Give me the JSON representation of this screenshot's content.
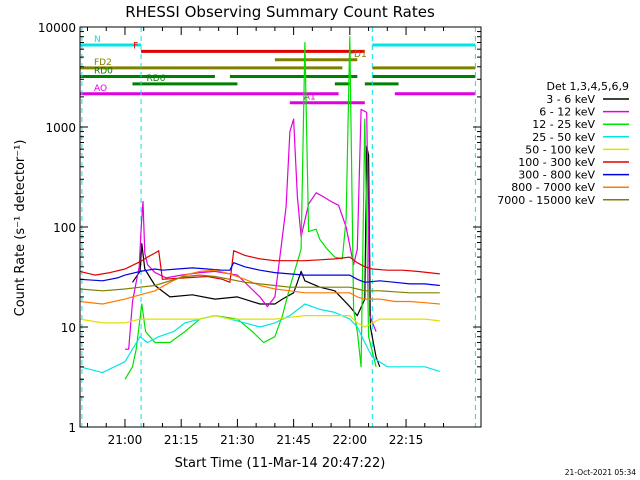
{
  "chart_data": {
    "type": "line",
    "title": "RHESSI Observing Summary Count Rates",
    "xlabel": "Start Time (11-Mar-14 20:47:22)",
    "ylabel": "Count Rate (s⁻¹ detector⁻¹)",
    "yscale": "log",
    "ylim": [
      1,
      10000
    ],
    "xlim_minutes": [
      -12,
      95
    ],
    "x_ticks": [
      {
        "m": 0,
        "label": "21:00"
      },
      {
        "m": 15,
        "label": "21:15"
      },
      {
        "m": 30,
        "label": "21:30"
      },
      {
        "m": 45,
        "label": "21:45"
      },
      {
        "m": 60,
        "label": "22:00"
      },
      {
        "m": 75,
        "label": "22:15"
      }
    ],
    "y_ticks": [
      {
        "v": 1,
        "label": "1"
      },
      {
        "v": 10,
        "label": "10"
      },
      {
        "v": 100,
        "label": "100"
      },
      {
        "v": 1000,
        "label": "1000"
      },
      {
        "v": 10000,
        "label": "10000"
      }
    ],
    "legend_title": "Det 1,3,4,5,6,9",
    "legend_position": "right",
    "series": [
      {
        "name": "3 - 6 keV",
        "color": "#000000",
        "points": [
          [
            -12,
            null
          ],
          [
            0,
            null
          ],
          [
            2,
            28
          ],
          [
            4,
            36
          ],
          [
            4.5,
            68
          ],
          [
            5.3,
            38
          ],
          [
            8,
            26
          ],
          [
            12,
            20
          ],
          [
            18,
            21
          ],
          [
            24,
            19
          ],
          [
            30,
            20
          ],
          [
            36,
            17
          ],
          [
            40,
            17
          ],
          [
            42,
            19
          ],
          [
            45,
            22
          ],
          [
            46,
            28
          ],
          [
            47,
            36
          ],
          [
            48,
            29
          ],
          [
            52,
            25
          ],
          [
            56,
            23
          ],
          [
            60,
            16
          ],
          [
            62,
            13
          ],
          [
            64,
            19
          ],
          [
            64.5,
            640
          ],
          [
            65,
            520
          ],
          [
            65.5,
            10
          ],
          [
            67,
            5
          ],
          [
            68,
            4
          ],
          [
            70,
            null
          ]
        ]
      },
      {
        "name": "6 - 12 keV",
        "color": "#e100e1",
        "points": [
          [
            0,
            6
          ],
          [
            1,
            6
          ],
          [
            2,
            18
          ],
          [
            3.8,
            40
          ],
          [
            4.3,
            95
          ],
          [
            4.8,
            180
          ],
          [
            5.3,
            55
          ],
          [
            6,
            42
          ],
          [
            8,
            35
          ],
          [
            11,
            31
          ],
          [
            15,
            33
          ],
          [
            20,
            35
          ],
          [
            24,
            36
          ],
          [
            30,
            33
          ],
          [
            36,
            20
          ],
          [
            38,
            16
          ],
          [
            40,
            20
          ],
          [
            42,
            80
          ],
          [
            43,
            160
          ],
          [
            44,
            900
          ],
          [
            45,
            1200
          ],
          [
            46,
            200
          ],
          [
            47,
            80
          ],
          [
            49,
            170
          ],
          [
            51,
            220
          ],
          [
            53,
            200
          ],
          [
            55,
            180
          ],
          [
            57,
            165
          ],
          [
            59,
            100
          ],
          [
            61,
            42
          ],
          [
            62,
            60
          ],
          [
            63,
            1500
          ],
          [
            64.5,
            1400
          ],
          [
            65.3,
            13
          ],
          [
            67,
            9
          ],
          [
            68,
            null
          ]
        ]
      },
      {
        "name": "12 - 25 keV",
        "color": "#00e100",
        "points": [
          [
            -12,
            null
          ],
          [
            0,
            3
          ],
          [
            2,
            4
          ],
          [
            3,
            6
          ],
          [
            4.5,
            17
          ],
          [
            5.5,
            9
          ],
          [
            8,
            7
          ],
          [
            12,
            7
          ],
          [
            16,
            9
          ],
          [
            20,
            12
          ],
          [
            24,
            13
          ],
          [
            30,
            12
          ],
          [
            34,
            9
          ],
          [
            37,
            7
          ],
          [
            40,
            8
          ],
          [
            42,
            13
          ],
          [
            44,
            25
          ],
          [
            46,
            45
          ],
          [
            47,
            60
          ],
          [
            48,
            7000
          ],
          [
            49,
            90
          ],
          [
            51,
            95
          ],
          [
            52,
            75
          ],
          [
            54,
            60
          ],
          [
            56,
            50
          ],
          [
            58,
            48
          ],
          [
            59,
            120
          ],
          [
            60,
            8000
          ],
          [
            61,
            15
          ],
          [
            62,
            9
          ],
          [
            63,
            4
          ],
          [
            64,
            1200
          ],
          [
            65,
            8
          ],
          [
            67,
            4
          ],
          [
            68,
            null
          ]
        ]
      },
      {
        "name": "25 - 50 keV",
        "color": "#00e6e6",
        "points": [
          [
            -12,
            4
          ],
          [
            -6,
            3.5
          ],
          [
            0,
            4.5
          ],
          [
            2,
            6
          ],
          [
            4,
            8
          ],
          [
            6,
            7
          ],
          [
            9,
            8
          ],
          [
            13,
            9
          ],
          [
            16,
            11
          ],
          [
            20,
            12
          ],
          [
            24,
            13
          ],
          [
            28,
            12
          ],
          [
            32,
            11
          ],
          [
            36,
            10
          ],
          [
            40,
            11
          ],
          [
            44,
            13
          ],
          [
            48,
            17
          ],
          [
            52,
            15
          ],
          [
            56,
            14
          ],
          [
            60,
            12
          ],
          [
            62,
            10
          ],
          [
            64,
            7
          ],
          [
            66,
            5
          ],
          [
            70,
            4
          ],
          [
            75,
            4
          ],
          [
            80,
            4
          ],
          [
            84,
            3.6
          ]
        ]
      },
      {
        "name": "50 - 100 keV",
        "color": "#e1e100",
        "points": [
          [
            -12,
            12
          ],
          [
            -6,
            11
          ],
          [
            0,
            11
          ],
          [
            4,
            12
          ],
          [
            8,
            12
          ],
          [
            12,
            12
          ],
          [
            16,
            12
          ],
          [
            20,
            12
          ],
          [
            24,
            13
          ],
          [
            28,
            12
          ],
          [
            32,
            12
          ],
          [
            36,
            12
          ],
          [
            40,
            12
          ],
          [
            44,
            12.5
          ],
          [
            48,
            13
          ],
          [
            52,
            13
          ],
          [
            56,
            13
          ],
          [
            60,
            13
          ],
          [
            62,
            11
          ],
          [
            64,
            10
          ],
          [
            68,
            12
          ],
          [
            72,
            12
          ],
          [
            76,
            12
          ],
          [
            80,
            12
          ],
          [
            84,
            11.5
          ]
        ]
      },
      {
        "name": "100 - 300 keV",
        "color": "#e10000",
        "points": [
          [
            -12,
            36
          ],
          [
            -8,
            33
          ],
          [
            -4,
            35
          ],
          [
            0,
            38
          ],
          [
            4,
            45
          ],
          [
            6,
            50
          ],
          [
            8,
            55
          ],
          [
            9,
            58
          ],
          [
            10,
            30
          ],
          [
            16,
            31
          ],
          [
            22,
            32
          ],
          [
            26,
            30
          ],
          [
            28,
            28
          ],
          [
            29,
            58
          ],
          [
            32,
            52
          ],
          [
            36,
            48
          ],
          [
            40,
            46
          ],
          [
            44,
            46
          ],
          [
            48,
            46
          ],
          [
            52,
            47
          ],
          [
            56,
            48
          ],
          [
            60,
            50
          ],
          [
            62,
            44
          ],
          [
            64,
            40
          ],
          [
            66,
            38
          ],
          [
            70,
            37
          ],
          [
            74,
            37
          ],
          [
            78,
            36
          ],
          [
            84,
            34
          ]
        ]
      },
      {
        "name": "300 - 800 keV",
        "color": "#0000e1",
        "points": [
          [
            -12,
            30
          ],
          [
            -6,
            29
          ],
          [
            -2,
            31
          ],
          [
            0,
            33
          ],
          [
            4,
            36
          ],
          [
            6,
            37
          ],
          [
            8,
            38
          ],
          [
            10,
            37
          ],
          [
            14,
            38
          ],
          [
            18,
            39
          ],
          [
            22,
            38
          ],
          [
            26,
            37
          ],
          [
            28,
            37
          ],
          [
            29,
            44
          ],
          [
            32,
            40
          ],
          [
            36,
            37
          ],
          [
            40,
            35
          ],
          [
            44,
            34
          ],
          [
            48,
            33
          ],
          [
            52,
            33
          ],
          [
            56,
            33
          ],
          [
            60,
            33
          ],
          [
            62,
            30
          ],
          [
            64,
            28
          ],
          [
            68,
            29
          ],
          [
            72,
            28
          ],
          [
            76,
            27
          ],
          [
            80,
            27
          ],
          [
            84,
            26
          ]
        ]
      },
      {
        "name": "800 - 7000 keV",
        "color": "#ff7800",
        "points": [
          [
            -12,
            18
          ],
          [
            -6,
            17
          ],
          [
            0,
            19
          ],
          [
            4,
            21
          ],
          [
            8,
            23
          ],
          [
            12,
            28
          ],
          [
            16,
            33
          ],
          [
            20,
            36
          ],
          [
            24,
            37
          ],
          [
            28,
            34
          ],
          [
            32,
            30
          ],
          [
            36,
            26
          ],
          [
            40,
            24
          ],
          [
            44,
            23
          ],
          [
            48,
            22
          ],
          [
            52,
            22
          ],
          [
            56,
            22
          ],
          [
            60,
            22
          ],
          [
            62,
            20
          ],
          [
            64,
            19
          ],
          [
            68,
            19
          ],
          [
            72,
            18
          ],
          [
            76,
            18
          ],
          [
            80,
            17.5
          ],
          [
            84,
            17
          ]
        ]
      },
      {
        "name": "7000 - 15000 keV",
        "color": "#808000",
        "points": [
          [
            -12,
            24
          ],
          [
            -6,
            23
          ],
          [
            0,
            24
          ],
          [
            4,
            25
          ],
          [
            8,
            26
          ],
          [
            12,
            29
          ],
          [
            16,
            32
          ],
          [
            20,
            33
          ],
          [
            24,
            32
          ],
          [
            28,
            30
          ],
          [
            32,
            28
          ],
          [
            36,
            27
          ],
          [
            40,
            26
          ],
          [
            44,
            25
          ],
          [
            48,
            25
          ],
          [
            52,
            25
          ],
          [
            56,
            25
          ],
          [
            60,
            25
          ],
          [
            62,
            24
          ],
          [
            64,
            23
          ],
          [
            68,
            23
          ],
          [
            72,
            22.5
          ],
          [
            76,
            22
          ],
          [
            80,
            22
          ],
          [
            84,
            22
          ]
        ]
      }
    ],
    "annotations": {
      "vlines_minutes": [
        -11.5,
        4.3,
        66,
        93.5
      ],
      "flag_bars": [
        {
          "label": "N",
          "color": "#00e6e6",
          "y": 6600,
          "segments": [
            [
              -12,
              4.3
            ],
            [
              66,
              93.5
            ]
          ]
        },
        {
          "label": "F",
          "color": "#e10000",
          "y": 5700,
          "segments": [
            [
              4.3,
              64
            ]
          ]
        },
        {
          "label": "FD1",
          "color": "#808000",
          "y": 4700,
          "segments": [
            [
              40,
              62
            ]
          ]
        },
        {
          "label": "FD2",
          "color": "#808000",
          "y": 3900,
          "segments": [
            [
              -12,
              58
            ],
            [
              66,
              93.5
            ]
          ]
        },
        {
          "label": "RD0",
          "color": "#008000",
          "y": 3200,
          "segments": [
            [
              -12,
              24
            ],
            [
              28,
              62
            ],
            [
              66,
              93.5
            ]
          ]
        },
        {
          "label": "RD6",
          "color": "#008000",
          "y": 2700,
          "segments": [
            [
              2,
              30
            ],
            [
              56,
              60
            ],
            [
              64,
              73
            ]
          ]
        },
        {
          "label": "AO",
          "color": "#e100e1",
          "y": 2150,
          "segments": [
            [
              -12,
              57
            ],
            [
              72,
              93.5
            ]
          ]
        },
        {
          "label": "A1",
          "color": "#e100e1",
          "y": 1750,
          "segments": [
            [
              44,
              64
            ]
          ]
        }
      ]
    },
    "footer_timestamp": "21-Oct-2021 05:34"
  }
}
